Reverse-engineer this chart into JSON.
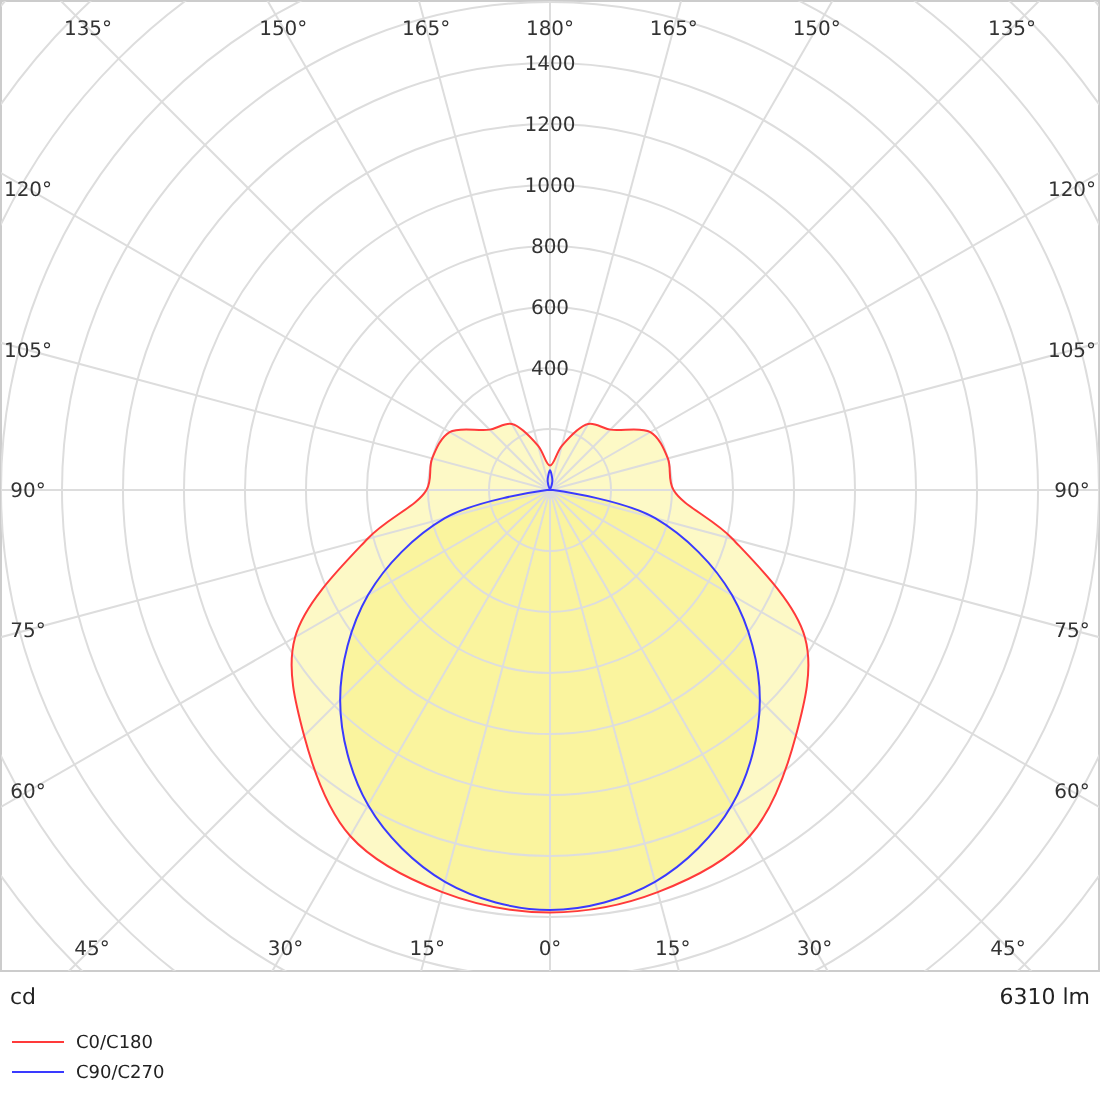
{
  "chart_data": {
    "type": "radar",
    "categories": [
      "180°",
      "165°",
      "150°",
      "135°",
      "120°",
      "105°",
      "90°",
      "75°",
      "60°",
      "45°",
      "30°",
      "15°",
      "0°",
      "15°",
      "30°",
      "45°",
      "60°",
      "75°",
      "90°",
      "105°",
      "120°",
      "135°",
      "150°",
      "165°"
    ],
    "series": [
      {
        "name": "C0/C180",
        "color": "#ff3a3a",
        "values": [
          80,
          150,
          250,
          280,
          380,
          400,
          405,
          620,
          965,
          1140,
          1310,
          1365,
          1385,
          1365,
          1310,
          1140,
          965,
          620,
          405,
          400,
          380,
          280,
          250,
          150
        ]
      },
      {
        "name": "C90/C270",
        "color": "#3a3aff",
        "values": [
          65,
          30,
          0,
          0,
          0,
          0,
          10,
          357,
          689,
          973,
          1193,
          1330,
          1377,
          1330,
          1193,
          973,
          689,
          357,
          10,
          0,
          0,
          0,
          0,
          30
        ]
      }
    ],
    "ylim": [
      0,
      2400
    ],
    "yticks": [
      400,
      600,
      800,
      1000,
      1200,
      1400
    ],
    "grid": true,
    "legend": "bottom",
    "annotations": [
      "cd",
      "6310 lm"
    ]
  }
}
